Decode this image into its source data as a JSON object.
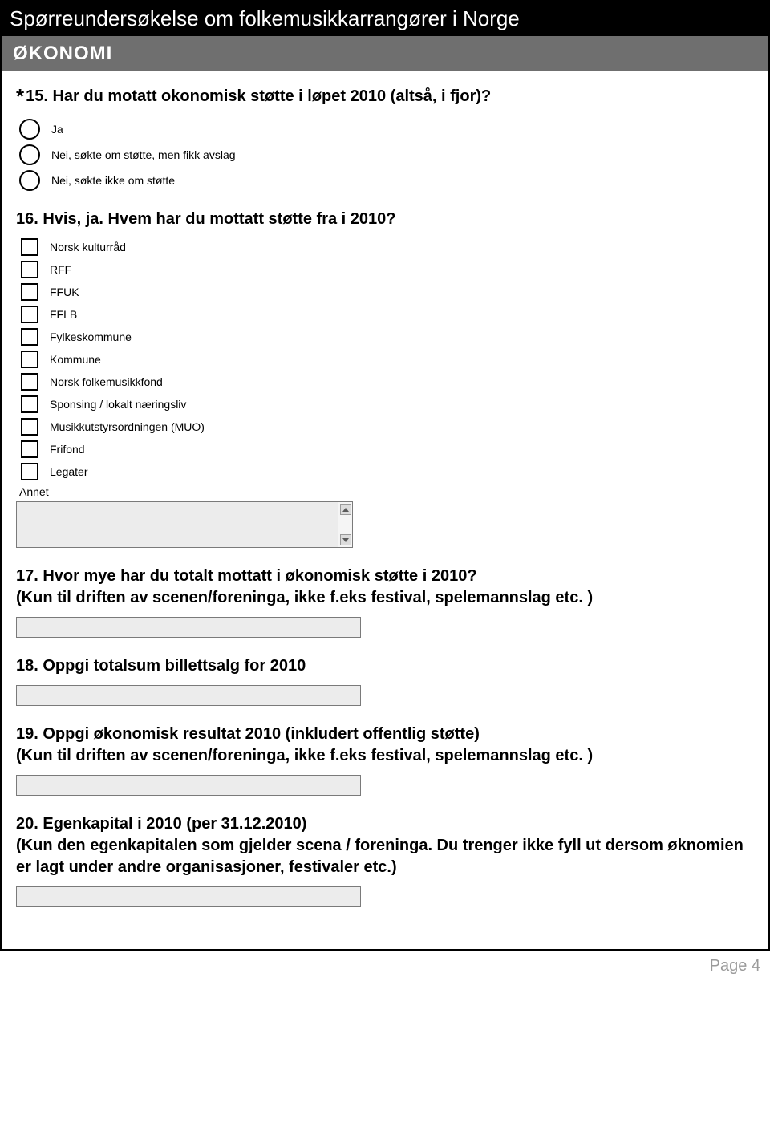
{
  "colors": {
    "title_bg": "#000000",
    "title_text": "#ffffff",
    "section_bg": "#6f6f6f",
    "section_text": "#ffffff",
    "body_bg": "#ffffff",
    "input_bg": "#ececec",
    "input_border": "#7a7a7a",
    "page_number_color": "#9a9a9a",
    "text_color": "#000000"
  },
  "header": {
    "survey_title": "Spørreundersøkelse om folkemusikkarrangører i Norge",
    "section_title": "ØKONOMI"
  },
  "q15": {
    "required_marker": "*",
    "title": "15. Har du motatt okonomisk støtte i løpet 2010 (altså, i fjor)?",
    "options": [
      "Ja",
      "Nei, søkte om støtte, men fikk avslag",
      "Nei, søkte ikke om støtte"
    ]
  },
  "q16": {
    "title": "16. Hvis, ja. Hvem har du mottatt støtte fra i 2010?",
    "options": [
      "Norsk kulturråd",
      "RFF",
      "FFUK",
      "FFLB",
      "Fylkeskommune",
      "Kommune",
      "Norsk folkemusikkfond",
      "Sponsing / lokalt næringsliv",
      "Musikkutstyrsordningen (MUO)",
      "Frifond",
      "Legater"
    ],
    "other_label": "Annet"
  },
  "q17": {
    "title_line1": "17. Hvor mye har du totalt mottatt i økonomisk støtte i 2010?",
    "title_line2": "(Kun til driften av scenen/foreninga, ikke f.eks festival, spelemannslag etc. )"
  },
  "q18": {
    "title": "18. Oppgi totalsum billettsalg for 2010"
  },
  "q19": {
    "title_line1": "19. Oppgi økonomisk resultat 2010 (inkludert offentlig støtte)",
    "title_line2": "(Kun til driften av scenen/foreninga, ikke f.eks festival, spelemannslag etc. )"
  },
  "q20": {
    "title_line1": "20. Egenkapital i 2010 (per 31.12.2010)",
    "title_line2": "(Kun den egenkapitalen som gjelder scena / foreninga. Du trenger ikke fyll ut dersom øknomien er lagt under andre organisasjoner, festivaler etc.)"
  },
  "footer": {
    "page_label": "Page 4"
  }
}
